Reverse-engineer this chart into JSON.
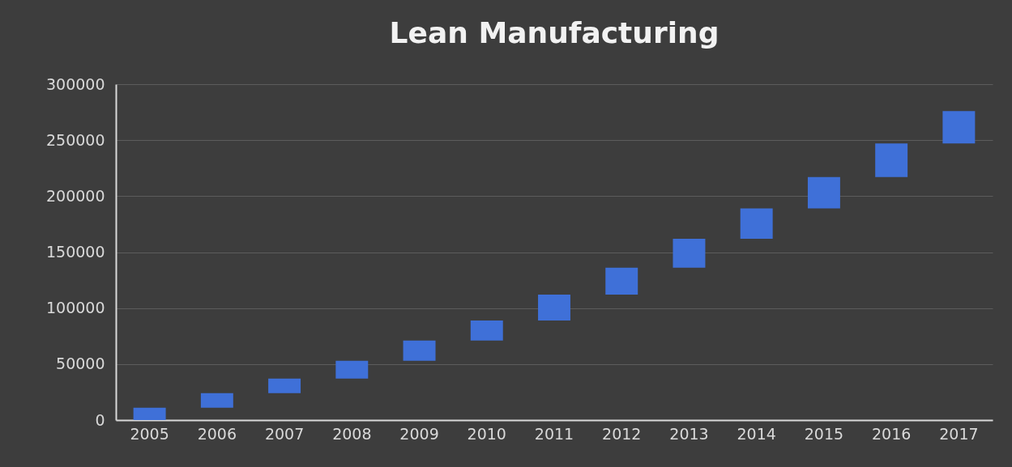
{
  "chart_data": {
    "type": "bar",
    "title": "Lean Manufacturing",
    "categories": [
      "2005",
      "2006",
      "2007",
      "2008",
      "2009",
      "2010",
      "2011",
      "2012",
      "2013",
      "2014",
      "2015",
      "2016",
      "2017"
    ],
    "base": [
      0,
      11000,
      24000,
      37000,
      53000,
      71000,
      89000,
      112000,
      136000,
      162000,
      189000,
      217000,
      247000
    ],
    "values": [
      11000,
      13000,
      13000,
      16000,
      18000,
      18000,
      23000,
      24000,
      26000,
      27000,
      28000,
      30000,
      29000
    ],
    "color": "#3f70d8",
    "ylim": [
      0,
      300000
    ],
    "yticks": [
      0,
      50000,
      100000,
      150000,
      200000,
      250000,
      300000
    ],
    "grid": "y"
  }
}
